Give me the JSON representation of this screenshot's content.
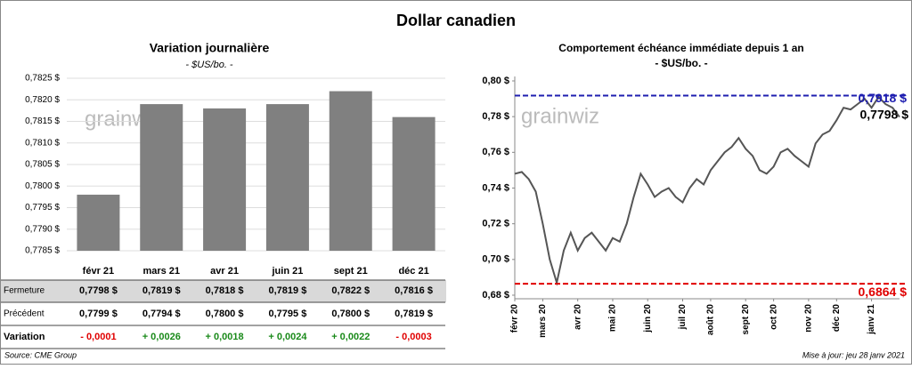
{
  "title": "Dollar canadien",
  "watermark": "grainwiz",
  "source": "Source: CME Group",
  "updated": "Mise à jour: jeu 28 janv 2021",
  "chart_data": [
    {
      "type": "bar",
      "title": "Variation  journalière",
      "subtitle": "- $US/bo. -",
      "categories": [
        "févr 21",
        "mars 21",
        "avr 21",
        "juin 21",
        "sept 21",
        "déc 21"
      ],
      "values": [
        0.7798,
        0.7819,
        0.7818,
        0.7819,
        0.7822,
        0.7816
      ],
      "value_labels": [
        "0,7798  $",
        "0,7819  $",
        "0,7818  $",
        "0,7819  $",
        "0,7822  $",
        "0,7816  $"
      ],
      "color": "#808080",
      "ylim": [
        0.7785,
        0.7825
      ],
      "yticks": [
        {
          "value": 0.7785,
          "label": "0,7785 $"
        },
        {
          "value": 0.779,
          "label": "0,7790 $"
        },
        {
          "value": 0.7795,
          "label": "0,7795 $"
        },
        {
          "value": 0.78,
          "label": "0,7800 $"
        },
        {
          "value": 0.7805,
          "label": "0,7805 $"
        },
        {
          "value": 0.781,
          "label": "0,7810 $"
        },
        {
          "value": 0.7815,
          "label": "0,7815 $"
        },
        {
          "value": 0.782,
          "label": "0,7820 $"
        },
        {
          "value": 0.7825,
          "label": "0,7825 $"
        }
      ],
      "table": {
        "rows": [
          {
            "label": "Fermeture"
          },
          {
            "label": "Précédent",
            "cells": [
              "0,7799  $",
              "0,7794  $",
              "0,7800  $",
              "0,7795  $",
              "0,7800  $",
              "0,7819  $"
            ]
          },
          {
            "label": "Variation",
            "cells": [
              "- 0,0001",
              "+ 0,0026",
              "+ 0,0018",
              "+ 0,0024",
              "+ 0,0022",
              "- 0,0003"
            ],
            "cell_colors": [
              "#e00000",
              "#1a8a1a",
              "#1a8a1a",
              "#1a8a1a",
              "#1a8a1a",
              "#e00000"
            ]
          }
        ]
      }
    },
    {
      "type": "line",
      "title": "Comportement échéance immédiate depuis 1 an",
      "subtitle": "- $US/bo. -",
      "series": [
        {
          "name": "Échéance immédiate",
          "color": "#555555",
          "values": [
            0.748,
            0.749,
            0.745,
            0.738,
            0.72,
            0.7,
            0.687,
            0.705,
            0.715,
            0.705,
            0.712,
            0.715,
            0.71,
            0.705,
            0.712,
            0.71,
            0.72,
            0.735,
            0.748,
            0.742,
            0.735,
            0.738,
            0.74,
            0.735,
            0.732,
            0.74,
            0.745,
            0.742,
            0.75,
            0.755,
            0.76,
            0.763,
            0.768,
            0.762,
            0.758,
            0.75,
            0.748,
            0.752,
            0.76,
            0.762,
            0.758,
            0.755,
            0.752,
            0.765,
            0.77,
            0.772,
            0.778,
            0.785,
            0.784,
            0.787,
            0.79,
            0.785,
            0.791,
            0.787,
            0.785,
            0.7798
          ]
        }
      ],
      "xlim": [
        0,
        55
      ],
      "xticks": [
        {
          "value": 0,
          "label": "févr 20"
        },
        {
          "value": 4,
          "label": "mars 20"
        },
        {
          "value": 9,
          "label": "avr 20"
        },
        {
          "value": 14,
          "label": "mai 20"
        },
        {
          "value": 19,
          "label": "juin 20"
        },
        {
          "value": 24,
          "label": "juil 20"
        },
        {
          "value": 28,
          "label": "août 20"
        },
        {
          "value": 33,
          "label": "sept 20"
        },
        {
          "value": 37,
          "label": "oct 20"
        },
        {
          "value": 42,
          "label": "nov 20"
        },
        {
          "value": 46,
          "label": "déc 20"
        },
        {
          "value": 51,
          "label": "janv 21"
        }
      ],
      "ylim": [
        0.678,
        0.8
      ],
      "yticks": [
        {
          "value": 0.68,
          "label": "0,68 $"
        },
        {
          "value": 0.7,
          "label": "0,70 $"
        },
        {
          "value": 0.72,
          "label": "0,72 $"
        },
        {
          "value": 0.74,
          "label": "0,74 $"
        },
        {
          "value": 0.76,
          "label": "0,76 $"
        },
        {
          "value": 0.78,
          "label": "0,78 $"
        },
        {
          "value": 0.8,
          "label": "0,80 $"
        }
      ],
      "reference_lines": [
        {
          "value": 0.7918,
          "label": "0,7918 $",
          "color": "#1f1fb0"
        },
        {
          "value": 0.6864,
          "label": "0,6864 $",
          "color": "#e00000"
        }
      ],
      "last_label": {
        "value": 0.7798,
        "label": "0,7798 $"
      }
    }
  ]
}
